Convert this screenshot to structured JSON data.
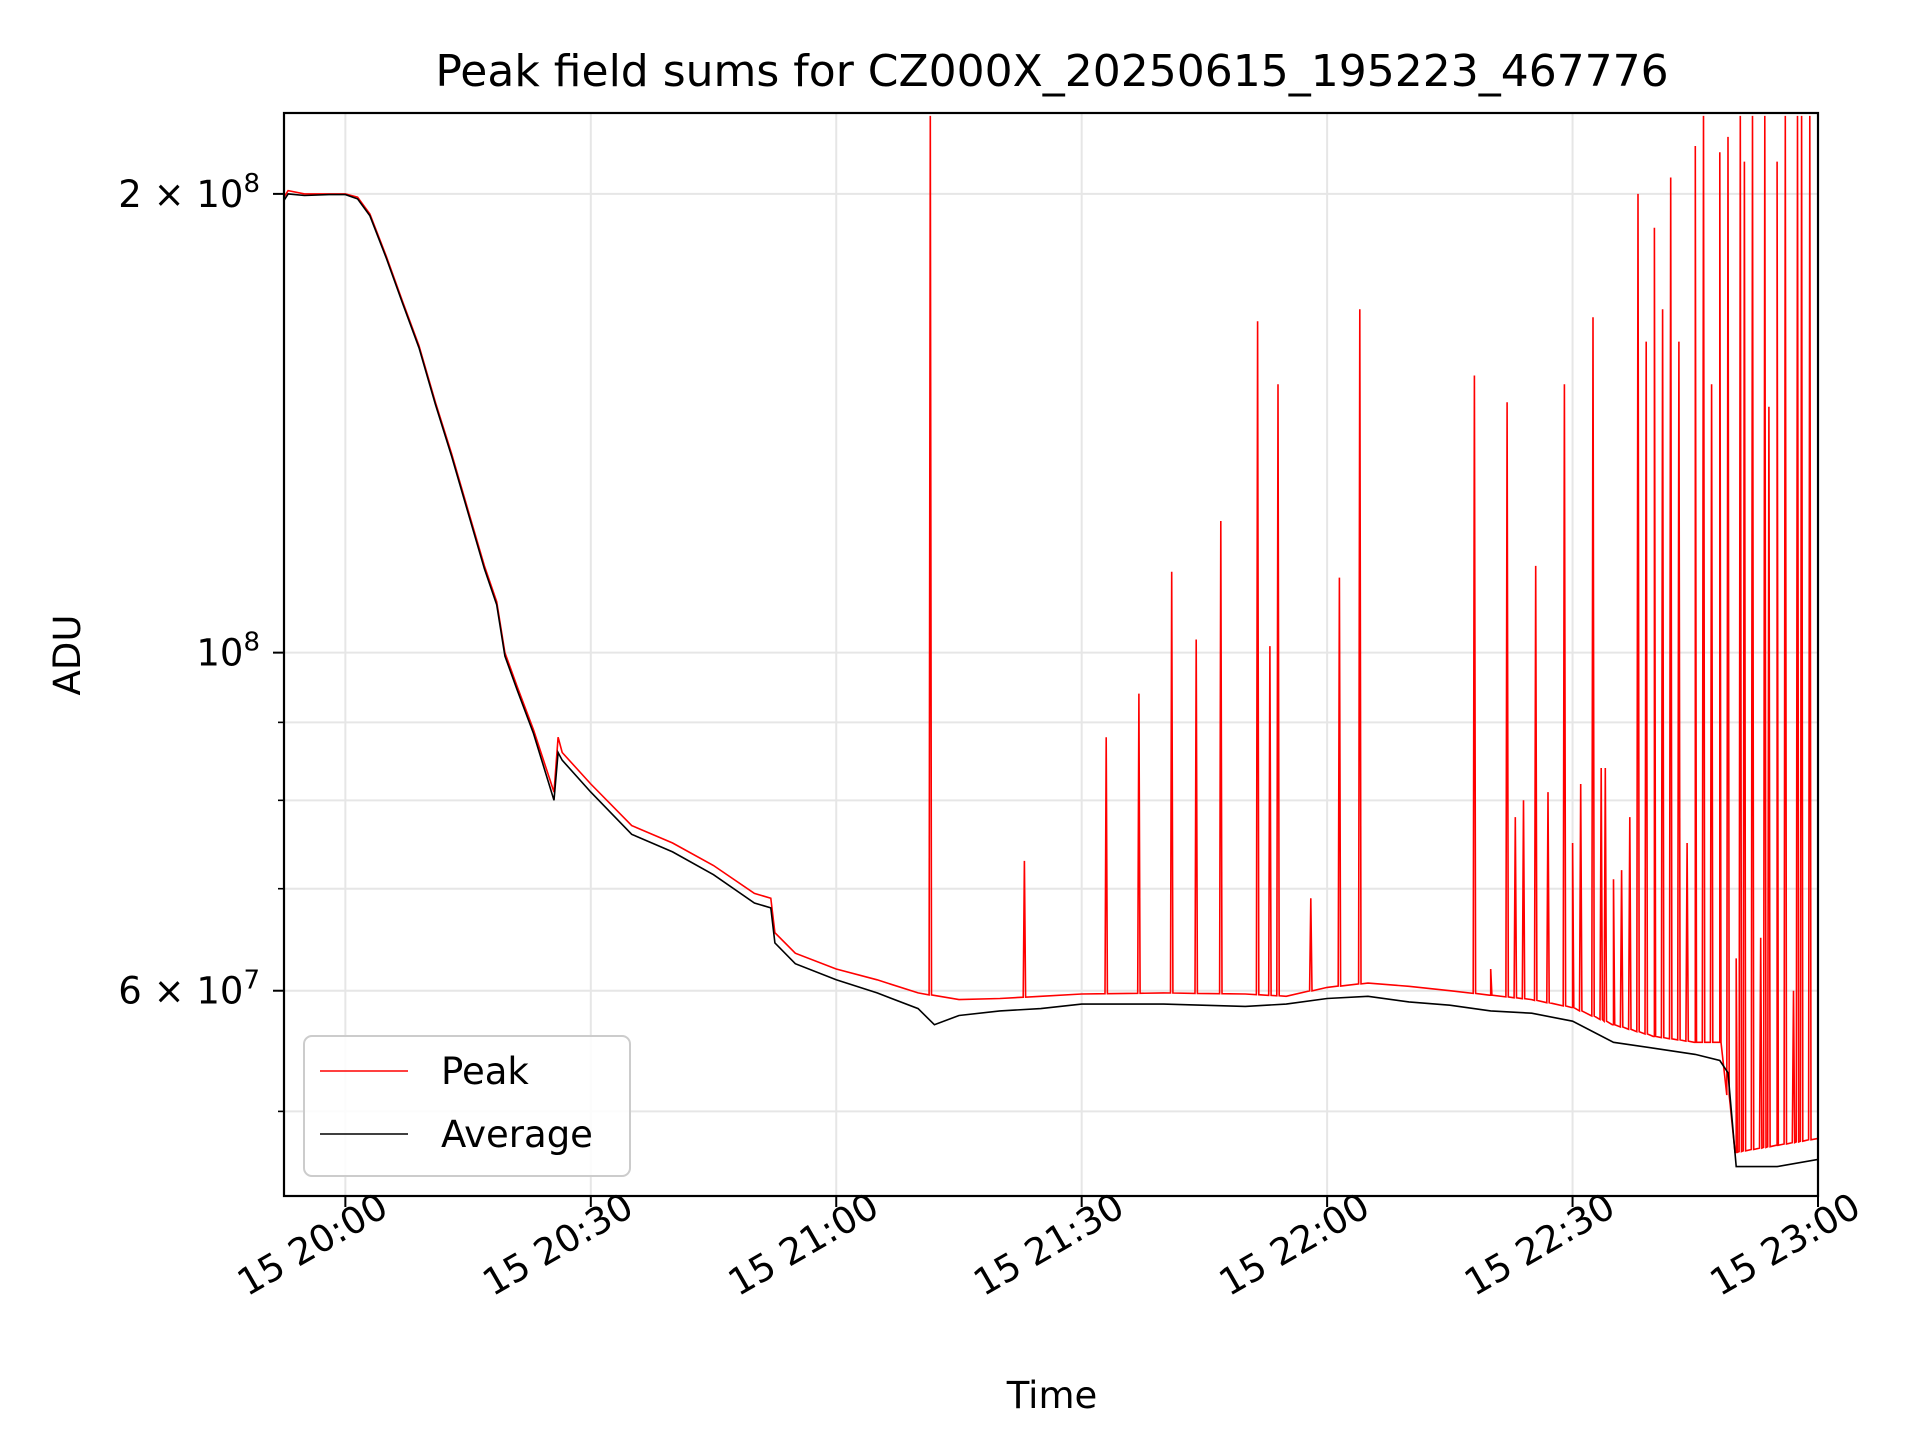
{
  "chart_data": {
    "type": "line",
    "title": "Peak field sums for CZ000X_20250615_195223_467776",
    "xlabel": "Time",
    "ylabel": "ADU",
    "x_range": [
      "2025-06-15 19:52:30",
      "2025-06-15 23:00:00"
    ],
    "y_range": [
      44000000,
      226000000
    ],
    "y_scale": "log",
    "grid": true,
    "legend_position": "lower-left",
    "x_ticks": [
      {
        "value": "2025-06-15 20:00",
        "label": "15 20:00"
      },
      {
        "value": "2025-06-15 20:30",
        "label": "15 20:30"
      },
      {
        "value": "2025-06-15 21:00",
        "label": "15 21:00"
      },
      {
        "value": "2025-06-15 21:30",
        "label": "15 21:30"
      },
      {
        "value": "2025-06-15 22:00",
        "label": "15 22:00"
      },
      {
        "value": "2025-06-15 22:30",
        "label": "15 22:30"
      },
      {
        "value": "2025-06-15 23:00",
        "label": "15 23:00"
      }
    ],
    "y_ticks_major": [
      {
        "value": 100000000,
        "base": "10",
        "exp": "8",
        "prefix": ""
      },
      {
        "value": 200000000,
        "base": "10",
        "exp": "8",
        "prefix": "2 × "
      },
      {
        "value": 60000000,
        "base": "10",
        "exp": "7",
        "prefix": "6 × "
      }
    ],
    "y_ticks_minor": [
      50000000,
      70000000,
      80000000,
      90000000
    ],
    "series": [
      {
        "name": "Peak",
        "color": "#ff0000",
        "baseline": [
          [
            "2025-06-15 19:52:30",
            199000000
          ],
          [
            "2025-06-15 19:53:00",
            201000000
          ],
          [
            "2025-06-15 19:55:00",
            200000000
          ],
          [
            "2025-06-15 19:58:00",
            200000000
          ],
          [
            "2025-06-15 20:00:00",
            200000000
          ],
          [
            "2025-06-15 20:01:30",
            199000000
          ],
          [
            "2025-06-15 20:03:00",
            194000000
          ],
          [
            "2025-06-15 20:05:00",
            182000000
          ],
          [
            "2025-06-15 20:07:00",
            170000000
          ],
          [
            "2025-06-15 20:09:00",
            159000000
          ],
          [
            "2025-06-15 20:11:00",
            146000000
          ],
          [
            "2025-06-15 20:13:00",
            135000000
          ],
          [
            "2025-06-15 20:15:00",
            124000000
          ],
          [
            "2025-06-15 20:17:00",
            114000000
          ],
          [
            "2025-06-15 20:18:30",
            108000000
          ],
          [
            "2025-06-15 20:19:30",
            100000000
          ],
          [
            "2025-06-15 20:21:00",
            95000000
          ],
          [
            "2025-06-15 20:23:00",
            89000000
          ],
          [
            "2025-06-15 20:25:30",
            81000000
          ],
          [
            "2025-06-15 20:26:00",
            88000000
          ],
          [
            "2025-06-15 20:26:30",
            86000000
          ],
          [
            "2025-06-15 20:30:00",
            82000000
          ],
          [
            "2025-06-15 20:35:00",
            77000000
          ],
          [
            "2025-06-15 20:40:00",
            75000000
          ],
          [
            "2025-06-15 20:45:00",
            72500000
          ],
          [
            "2025-06-15 20:50:00",
            69500000
          ],
          [
            "2025-06-15 20:52:00",
            69000000
          ],
          [
            "2025-06-15 20:52:30",
            65500000
          ],
          [
            "2025-06-15 20:55:00",
            63500000
          ],
          [
            "2025-06-15 21:00:00",
            62000000
          ],
          [
            "2025-06-15 21:05:00",
            61000000
          ],
          [
            "2025-06-15 21:10:00",
            59800000
          ],
          [
            "2025-06-15 21:15:00",
            59200000
          ],
          [
            "2025-06-15 21:20:00",
            59300000
          ],
          [
            "2025-06-15 21:25:00",
            59500000
          ],
          [
            "2025-06-15 21:30:00",
            59700000
          ],
          [
            "2025-06-15 21:40:00",
            59800000
          ],
          [
            "2025-06-15 21:50:00",
            59700000
          ],
          [
            "2025-06-15 21:55:00",
            59500000
          ],
          [
            "2025-06-15 22:00:00",
            60300000
          ],
          [
            "2025-06-15 22:05:00",
            60700000
          ],
          [
            "2025-06-15 22:10:00",
            60400000
          ],
          [
            "2025-06-15 22:15:00",
            60000000
          ],
          [
            "2025-06-15 22:20:00",
            59600000
          ],
          [
            "2025-06-15 22:25:00",
            59200000
          ],
          [
            "2025-06-15 22:30:00",
            58500000
          ],
          [
            "2025-06-15 22:35:00",
            57000000
          ],
          [
            "2025-06-15 22:40:00",
            56000000
          ],
          [
            "2025-06-15 22:45:00",
            55500000
          ],
          [
            "2025-06-15 22:48:00",
            55500000
          ],
          [
            "2025-06-15 22:50:00",
            47000000
          ],
          [
            "2025-06-15 22:55:00",
            47500000
          ],
          [
            "2025-06-15 23:00:00",
            48000000
          ]
        ],
        "spikes": [
          [
            "2025-06-15 21:11:30",
            225000000
          ],
          [
            "2025-06-15 21:23:00",
            73000000
          ],
          [
            "2025-06-15 21:33:00",
            88000000
          ],
          [
            "2025-06-15 21:37:00",
            94000000
          ],
          [
            "2025-06-15 21:41:00",
            113000000
          ],
          [
            "2025-06-15 21:44:00",
            102000000
          ],
          [
            "2025-06-15 21:47:00",
            122000000
          ],
          [
            "2025-06-15 21:51:30",
            165000000
          ],
          [
            "2025-06-15 21:53:00",
            101000000
          ],
          [
            "2025-06-15 21:54:00",
            150000000
          ],
          [
            "2025-06-15 21:58:00",
            69000000
          ],
          [
            "2025-06-15 22:01:30",
            112000000
          ],
          [
            "2025-06-15 22:04:00",
            168000000
          ],
          [
            "2025-06-15 22:18:00",
            152000000
          ],
          [
            "2025-06-15 22:20:00",
            62000000
          ],
          [
            "2025-06-15 22:22:00",
            146000000
          ],
          [
            "2025-06-15 22:23:00",
            78000000
          ],
          [
            "2025-06-15 22:24:00",
            80000000
          ],
          [
            "2025-06-15 22:25:30",
            114000000
          ],
          [
            "2025-06-15 22:27:00",
            81000000
          ],
          [
            "2025-06-15 22:29:00",
            150000000
          ],
          [
            "2025-06-15 22:30:00",
            75000000
          ],
          [
            "2025-06-15 22:31:00",
            82000000
          ],
          [
            "2025-06-15 22:32:30",
            166000000
          ],
          [
            "2025-06-15 22:33:30",
            84000000
          ],
          [
            "2025-06-15 22:34:00",
            84000000
          ],
          [
            "2025-06-15 22:35:00",
            71000000
          ],
          [
            "2025-06-15 22:36:00",
            72000000
          ],
          [
            "2025-06-15 22:37:00",
            78000000
          ],
          [
            "2025-06-15 22:38:00",
            200000000
          ],
          [
            "2025-06-15 22:39:00",
            160000000
          ],
          [
            "2025-06-15 22:40:00",
            190000000
          ],
          [
            "2025-06-15 22:41:00",
            168000000
          ],
          [
            "2025-06-15 22:42:00",
            205000000
          ],
          [
            "2025-06-15 22:43:00",
            160000000
          ],
          [
            "2025-06-15 22:44:00",
            75000000
          ],
          [
            "2025-06-15 22:45:00",
            215000000
          ],
          [
            "2025-06-15 22:46:00",
            225000000
          ],
          [
            "2025-06-15 22:47:00",
            150000000
          ],
          [
            "2025-06-15 22:48:00",
            213000000
          ],
          [
            "2025-06-15 22:49:00",
            218000000
          ],
          [
            "2025-06-15 22:50:00",
            63000000
          ],
          [
            "2025-06-15 22:50:30",
            225000000
          ],
          [
            "2025-06-15 22:51:00",
            210000000
          ],
          [
            "2025-06-15 22:52:00",
            225000000
          ],
          [
            "2025-06-15 22:53:00",
            65000000
          ],
          [
            "2025-06-15 22:53:30",
            225000000
          ],
          [
            "2025-06-15 22:54:00",
            145000000
          ],
          [
            "2025-06-15 22:55:00",
            210000000
          ],
          [
            "2025-06-15 22:56:00",
            225000000
          ],
          [
            "2025-06-15 22:57:00",
            60000000
          ],
          [
            "2025-06-15 22:57:30",
            225000000
          ],
          [
            "2025-06-15 22:58:00",
            225000000
          ],
          [
            "2025-06-15 22:59:00",
            225000000
          ]
        ]
      },
      {
        "name": "Average",
        "color": "#000000",
        "baseline": [
          [
            "2025-06-15 19:52:30",
            198000000
          ],
          [
            "2025-06-15 19:53:00",
            200000000
          ],
          [
            "2025-06-15 19:55:00",
            199500000
          ],
          [
            "2025-06-15 19:58:00",
            199800000
          ],
          [
            "2025-06-15 20:00:00",
            199800000
          ],
          [
            "2025-06-15 20:01:30",
            198500000
          ],
          [
            "2025-06-15 20:03:00",
            193500000
          ],
          [
            "2025-06-15 20:05:00",
            181500000
          ],
          [
            "2025-06-15 20:07:00",
            169500000
          ],
          [
            "2025-06-15 20:09:00",
            158500000
          ],
          [
            "2025-06-15 20:11:00",
            145500000
          ],
          [
            "2025-06-15 20:13:00",
            134500000
          ],
          [
            "2025-06-15 20:15:00",
            123500000
          ],
          [
            "2025-06-15 20:17:00",
            113500000
          ],
          [
            "2025-06-15 20:18:30",
            107500000
          ],
          [
            "2025-06-15 20:19:30",
            99500000
          ],
          [
            "2025-06-15 20:21:00",
            94500000
          ],
          [
            "2025-06-15 20:23:00",
            88500000
          ],
          [
            "2025-06-15 20:25:30",
            80000000
          ],
          [
            "2025-06-15 20:26:00",
            86000000
          ],
          [
            "2025-06-15 20:26:30",
            85000000
          ],
          [
            "2025-06-15 20:30:00",
            81000000
          ],
          [
            "2025-06-15 20:35:00",
            76000000
          ],
          [
            "2025-06-15 20:40:00",
            74000000
          ],
          [
            "2025-06-15 20:45:00",
            71500000
          ],
          [
            "2025-06-15 20:50:00",
            68500000
          ],
          [
            "2025-06-15 20:52:00",
            68000000
          ],
          [
            "2025-06-15 20:52:30",
            64500000
          ],
          [
            "2025-06-15 20:55:00",
            62500000
          ],
          [
            "2025-06-15 21:00:00",
            61000000
          ],
          [
            "2025-06-15 21:05:00",
            59800000
          ],
          [
            "2025-06-15 21:10:00",
            58400000
          ],
          [
            "2025-06-15 21:12:00",
            57000000
          ],
          [
            "2025-06-15 21:15:00",
            57800000
          ],
          [
            "2025-06-15 21:20:00",
            58200000
          ],
          [
            "2025-06-15 21:25:00",
            58400000
          ],
          [
            "2025-06-15 21:30:00",
            58800000
          ],
          [
            "2025-06-15 21:40:00",
            58800000
          ],
          [
            "2025-06-15 21:50:00",
            58600000
          ],
          [
            "2025-06-15 21:55:00",
            58800000
          ],
          [
            "2025-06-15 22:00:00",
            59300000
          ],
          [
            "2025-06-15 22:05:00",
            59500000
          ],
          [
            "2025-06-15 22:10:00",
            59000000
          ],
          [
            "2025-06-15 22:15:00",
            58700000
          ],
          [
            "2025-06-15 22:20:00",
            58200000
          ],
          [
            "2025-06-15 22:25:00",
            58000000
          ],
          [
            "2025-06-15 22:30:00",
            57300000
          ],
          [
            "2025-06-15 22:35:00",
            55500000
          ],
          [
            "2025-06-15 22:40:00",
            55000000
          ],
          [
            "2025-06-15 22:45:00",
            54500000
          ],
          [
            "2025-06-15 22:48:00",
            54000000
          ],
          [
            "2025-06-15 22:49:00",
            53000000
          ],
          [
            "2025-06-15 22:50:00",
            46000000
          ],
          [
            "2025-06-15 22:55:00",
            46000000
          ],
          [
            "2025-06-15 23:00:00",
            46500000
          ]
        ]
      }
    ]
  }
}
